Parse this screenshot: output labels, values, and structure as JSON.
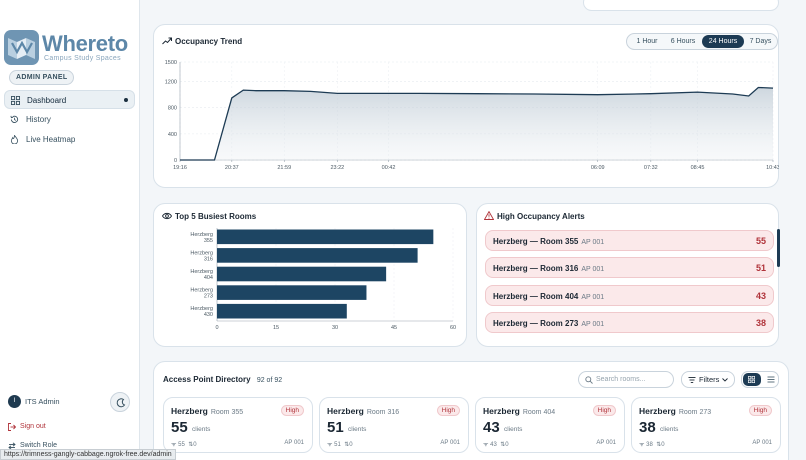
{
  "colors": {
    "brand": "#5d87a8",
    "accent": "#1d3b54",
    "alert": "#b0333a",
    "alert_bg": "#fbe9ea"
  },
  "sidebar": {
    "brand_name": "Whereto",
    "brand_tagline": "Campus Study Spaces",
    "role_badge": "ADMIN PANEL",
    "nav": [
      {
        "label": "Dashboard",
        "icon": "grid-icon",
        "active": true
      },
      {
        "label": "History",
        "icon": "history-icon"
      },
      {
        "label": "Live Heatmap",
        "icon": "flame-icon"
      }
    ],
    "user_initial": "I",
    "user_name": "ITS Admin",
    "sign_out": "Sign out",
    "switch_role": "Switch Role"
  },
  "status_url": "https://trimness-gangly-cabbage.ngrok-free.dev/admin",
  "occupancy": {
    "title": "Occupancy Trend",
    "ranges": [
      "1 Hour",
      "6 Hours",
      "24 Hours",
      "7 Days"
    ],
    "active_range": "24 Hours"
  },
  "chart_data": [
    {
      "type": "area",
      "title": "Occupancy Trend",
      "x_ticks": [
        "19:16",
        "20:37",
        "21:59",
        "23:22",
        "00:42",
        "06:09",
        "07:32",
        "08:45",
        "10:43"
      ],
      "ylim": [
        0,
        1500
      ],
      "y_ticks": [
        0,
        400,
        800,
        1200,
        1500
      ],
      "grid": true,
      "series": [
        {
          "x": [
            "19:16",
            "20:10",
            "20:37",
            "20:55",
            "21:15",
            "21:59",
            "22:40",
            "23:22",
            "00:00",
            "00:42",
            "01:30",
            "03:00",
            "04:30",
            "06:09",
            "07:32",
            "08:45",
            "09:40",
            "10:05",
            "10:20",
            "10:43"
          ],
          "y": [
            0,
            0,
            950,
            1070,
            1060,
            1060,
            1050,
            1020,
            1020,
            1020,
            1020,
            1015,
            1010,
            1000,
            1015,
            1040,
            1010,
            980,
            1110,
            1100
          ]
        }
      ]
    },
    {
      "type": "bar",
      "orientation": "horizontal",
      "title": "Top 5 Busiest Rooms",
      "categories": [
        "Herzberg 355",
        "Herzberg 316",
        "Herzberg 404",
        "Herzberg 273",
        "Herzberg 430"
      ],
      "values": [
        55,
        51,
        43,
        38,
        33
      ],
      "x_ticks": [
        0,
        15,
        30,
        45,
        60
      ],
      "xlim": [
        0,
        60
      ]
    }
  ],
  "alerts": {
    "title": "High Occupancy Alerts",
    "items": [
      {
        "room": "Herzberg — Room 355",
        "ap": "AP 001",
        "count": "55"
      },
      {
        "room": "Herzberg — Room 316",
        "ap": "AP 001",
        "count": "51"
      },
      {
        "room": "Herzberg — Room 404",
        "ap": "AP 001",
        "count": "43"
      },
      {
        "room": "Herzberg — Room 273",
        "ap": "AP 001",
        "count": "38"
      }
    ]
  },
  "directory": {
    "title": "Access Point Directory",
    "count": "92 of 92",
    "search_placeholder": "Search rooms...",
    "filters_label": "Filters",
    "cards": [
      {
        "building": "Herzberg",
        "room": "Room 355",
        "badge": "High",
        "clients": "55",
        "clients_label": "clients",
        "wifi": "55",
        "sync": "0",
        "ap": "AP 001"
      },
      {
        "building": "Herzberg",
        "room": "Room 316",
        "badge": "High",
        "clients": "51",
        "clients_label": "clients",
        "wifi": "51",
        "sync": "0",
        "ap": "AP 001"
      },
      {
        "building": "Herzberg",
        "room": "Room 404",
        "badge": "High",
        "clients": "43",
        "clients_label": "clients",
        "wifi": "43",
        "sync": "0",
        "ap": "AP 001"
      },
      {
        "building": "Herzberg",
        "room": "Room 273",
        "badge": "High",
        "clients": "38",
        "clients_label": "clients",
        "wifi": "38",
        "sync": "0",
        "ap": "AP 001"
      }
    ]
  }
}
